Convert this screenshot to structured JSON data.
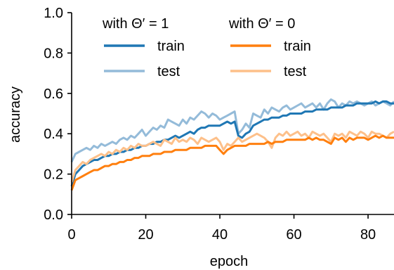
{
  "chart_data": {
    "type": "line",
    "xlabel": "epoch",
    "ylabel": "accuracy",
    "xlim": [
      0,
      87
    ],
    "ylim": [
      0.0,
      1.0
    ],
    "xticks": [
      0,
      20,
      40,
      60,
      80
    ],
    "yticks": [
      "0.0",
      "0.2",
      "0.4",
      "0.6",
      "0.8",
      "1.0"
    ],
    "grid": false,
    "legend_placement": "top-left",
    "legend_groups": [
      {
        "header": "with Θ′ = 1",
        "entries": [
          {
            "label": "train",
            "color": "#1f77b4"
          },
          {
            "label": "test",
            "color": "#94bbd9"
          }
        ]
      },
      {
        "header": "with Θ′ = 0",
        "entries": [
          {
            "label": "train",
            "color": "#ff7f0e"
          },
          {
            "label": "test",
            "color": "#fdc08a"
          }
        ]
      }
    ],
    "x": [
      0,
      1,
      2,
      3,
      4,
      5,
      6,
      7,
      8,
      9,
      10,
      11,
      12,
      13,
      14,
      15,
      16,
      17,
      18,
      19,
      20,
      21,
      22,
      23,
      24,
      25,
      26,
      27,
      28,
      29,
      30,
      31,
      32,
      33,
      34,
      35,
      36,
      37,
      38,
      39,
      40,
      41,
      42,
      43,
      44,
      45,
      46,
      47,
      48,
      49,
      50,
      51,
      52,
      53,
      54,
      55,
      56,
      57,
      58,
      59,
      60,
      61,
      62,
      63,
      64,
      65,
      66,
      67,
      68,
      69,
      70,
      71,
      72,
      73,
      74,
      75,
      76,
      77,
      78,
      79,
      80,
      81,
      82,
      83,
      84,
      85,
      86,
      87
    ],
    "series": [
      {
        "name": "with Θ′ = 1 test",
        "color": "#94bbd9",
        "values": [
          0.26,
          0.3,
          0.31,
          0.32,
          0.33,
          0.32,
          0.34,
          0.33,
          0.35,
          0.34,
          0.35,
          0.36,
          0.35,
          0.37,
          0.38,
          0.37,
          0.39,
          0.38,
          0.4,
          0.42,
          0.39,
          0.41,
          0.43,
          0.42,
          0.44,
          0.43,
          0.47,
          0.46,
          0.45,
          0.44,
          0.47,
          0.45,
          0.48,
          0.47,
          0.49,
          0.51,
          0.5,
          0.48,
          0.5,
          0.49,
          0.47,
          0.48,
          0.49,
          0.5,
          0.51,
          0.4,
          0.42,
          0.45,
          0.43,
          0.5,
          0.49,
          0.48,
          0.52,
          0.5,
          0.53,
          0.52,
          0.51,
          0.53,
          0.54,
          0.52,
          0.53,
          0.54,
          0.55,
          0.53,
          0.54,
          0.55,
          0.53,
          0.55,
          0.52,
          0.55,
          0.57,
          0.56,
          0.53,
          0.55,
          0.54,
          0.56,
          0.55,
          0.56,
          0.55,
          0.54,
          0.55,
          0.56,
          0.54,
          0.55,
          0.56,
          0.55,
          0.54,
          0.56
        ]
      },
      {
        "name": "with Θ′ = 1 train",
        "color": "#1f77b4",
        "values": [
          0.14,
          0.2,
          0.22,
          0.24,
          0.25,
          0.26,
          0.27,
          0.27,
          0.28,
          0.29,
          0.29,
          0.3,
          0.3,
          0.31,
          0.31,
          0.32,
          0.32,
          0.33,
          0.33,
          0.34,
          0.34,
          0.35,
          0.35,
          0.36,
          0.36,
          0.37,
          0.37,
          0.38,
          0.39,
          0.38,
          0.39,
          0.4,
          0.41,
          0.4,
          0.42,
          0.43,
          0.43,
          0.44,
          0.44,
          0.44,
          0.44,
          0.45,
          0.46,
          0.45,
          0.46,
          0.39,
          0.38,
          0.4,
          0.41,
          0.44,
          0.45,
          0.46,
          0.47,
          0.47,
          0.48,
          0.48,
          0.48,
          0.49,
          0.49,
          0.5,
          0.5,
          0.5,
          0.5,
          0.51,
          0.51,
          0.51,
          0.52,
          0.52,
          0.52,
          0.52,
          0.53,
          0.53,
          0.53,
          0.53,
          0.54,
          0.54,
          0.54,
          0.55,
          0.55,
          0.55,
          0.55,
          0.55,
          0.56,
          0.55,
          0.56,
          0.56,
          0.55,
          0.55
        ]
      },
      {
        "name": "with Θ′ = 0 test",
        "color": "#fdc08a",
        "values": [
          0.16,
          0.22,
          0.24,
          0.26,
          0.25,
          0.27,
          0.28,
          0.29,
          0.3,
          0.29,
          0.31,
          0.3,
          0.32,
          0.31,
          0.33,
          0.32,
          0.34,
          0.33,
          0.35,
          0.34,
          0.34,
          0.35,
          0.36,
          0.35,
          0.34,
          0.37,
          0.36,
          0.35,
          0.38,
          0.36,
          0.37,
          0.36,
          0.38,
          0.37,
          0.35,
          0.38,
          0.37,
          0.36,
          0.37,
          0.38,
          0.36,
          0.32,
          0.35,
          0.34,
          0.36,
          0.38,
          0.36,
          0.37,
          0.38,
          0.39,
          0.4,
          0.39,
          0.38,
          0.36,
          0.33,
          0.38,
          0.4,
          0.39,
          0.41,
          0.39,
          0.4,
          0.41,
          0.39,
          0.4,
          0.38,
          0.41,
          0.4,
          0.39,
          0.4,
          0.38,
          0.36,
          0.4,
          0.39,
          0.4,
          0.38,
          0.41,
          0.4,
          0.39,
          0.41,
          0.4,
          0.38,
          0.41,
          0.4,
          0.4,
          0.39,
          0.38,
          0.4,
          0.41
        ]
      },
      {
        "name": "with Θ′ = 0 train",
        "color": "#ff7f0e",
        "values": [
          0.12,
          0.17,
          0.18,
          0.19,
          0.2,
          0.21,
          0.22,
          0.22,
          0.23,
          0.24,
          0.24,
          0.25,
          0.25,
          0.26,
          0.26,
          0.27,
          0.27,
          0.28,
          0.28,
          0.29,
          0.29,
          0.29,
          0.3,
          0.3,
          0.3,
          0.31,
          0.31,
          0.31,
          0.32,
          0.32,
          0.32,
          0.32,
          0.33,
          0.33,
          0.33,
          0.33,
          0.34,
          0.34,
          0.34,
          0.34,
          0.32,
          0.3,
          0.32,
          0.33,
          0.34,
          0.34,
          0.34,
          0.34,
          0.35,
          0.35,
          0.35,
          0.35,
          0.35,
          0.36,
          0.35,
          0.36,
          0.36,
          0.36,
          0.37,
          0.37,
          0.37,
          0.37,
          0.37,
          0.37,
          0.38,
          0.37,
          0.38,
          0.37,
          0.37,
          0.36,
          0.35,
          0.38,
          0.37,
          0.38,
          0.36,
          0.38,
          0.37,
          0.38,
          0.38,
          0.38,
          0.37,
          0.38,
          0.39,
          0.38,
          0.39,
          0.38,
          0.38,
          0.38
        ]
      }
    ]
  }
}
